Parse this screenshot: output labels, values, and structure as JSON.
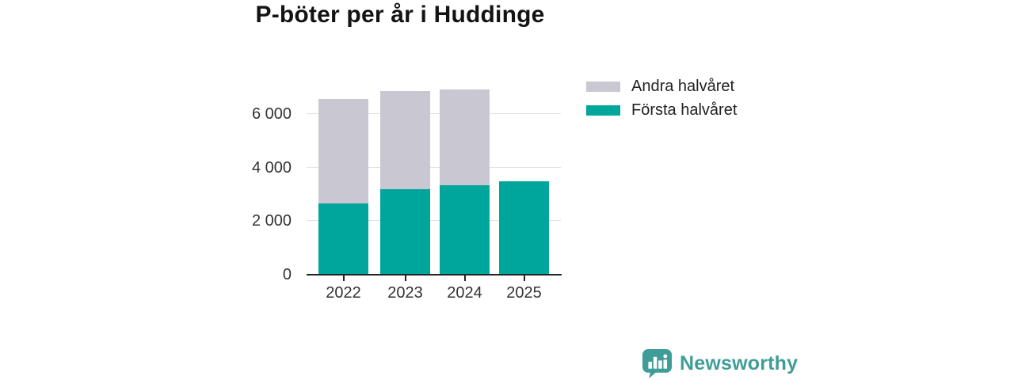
{
  "title": "P-böter per år i Huddinge",
  "colors": {
    "teal": "#00a59c",
    "gray": "#c9c7d1",
    "grid": "#e2e2e5",
    "axis": "#222222",
    "label_text": "#333333",
    "brand": "#3e9d97"
  },
  "chart_data": {
    "type": "bar",
    "stacked": true,
    "title": "P-böter per år i Huddinge",
    "categories": [
      "2022",
      "2023",
      "2024",
      "2025"
    ],
    "series": [
      {
        "name": "Första halvåret",
        "color_key": "teal",
        "values": [
          2650,
          3200,
          3350,
          3500
        ]
      },
      {
        "name": "Andra halvåret",
        "color_key": "gray",
        "values": [
          3900,
          3650,
          3550,
          0
        ]
      }
    ],
    "ylim": [
      0,
      7600
    ],
    "yticks": [
      0,
      2000,
      4000,
      6000
    ],
    "ytick_labels": [
      "0",
      "2 000",
      "4 000",
      "6 000"
    ],
    "grid": true,
    "legend_position": "top-right"
  },
  "legend": {
    "items": [
      {
        "label": "Andra halvåret",
        "color_key": "gray"
      },
      {
        "label": "Första halvåret",
        "color_key": "teal"
      }
    ]
  },
  "footer": {
    "brand": "Newsworthy",
    "logo_icon": "bar-chart-speech-bubble-icon"
  }
}
